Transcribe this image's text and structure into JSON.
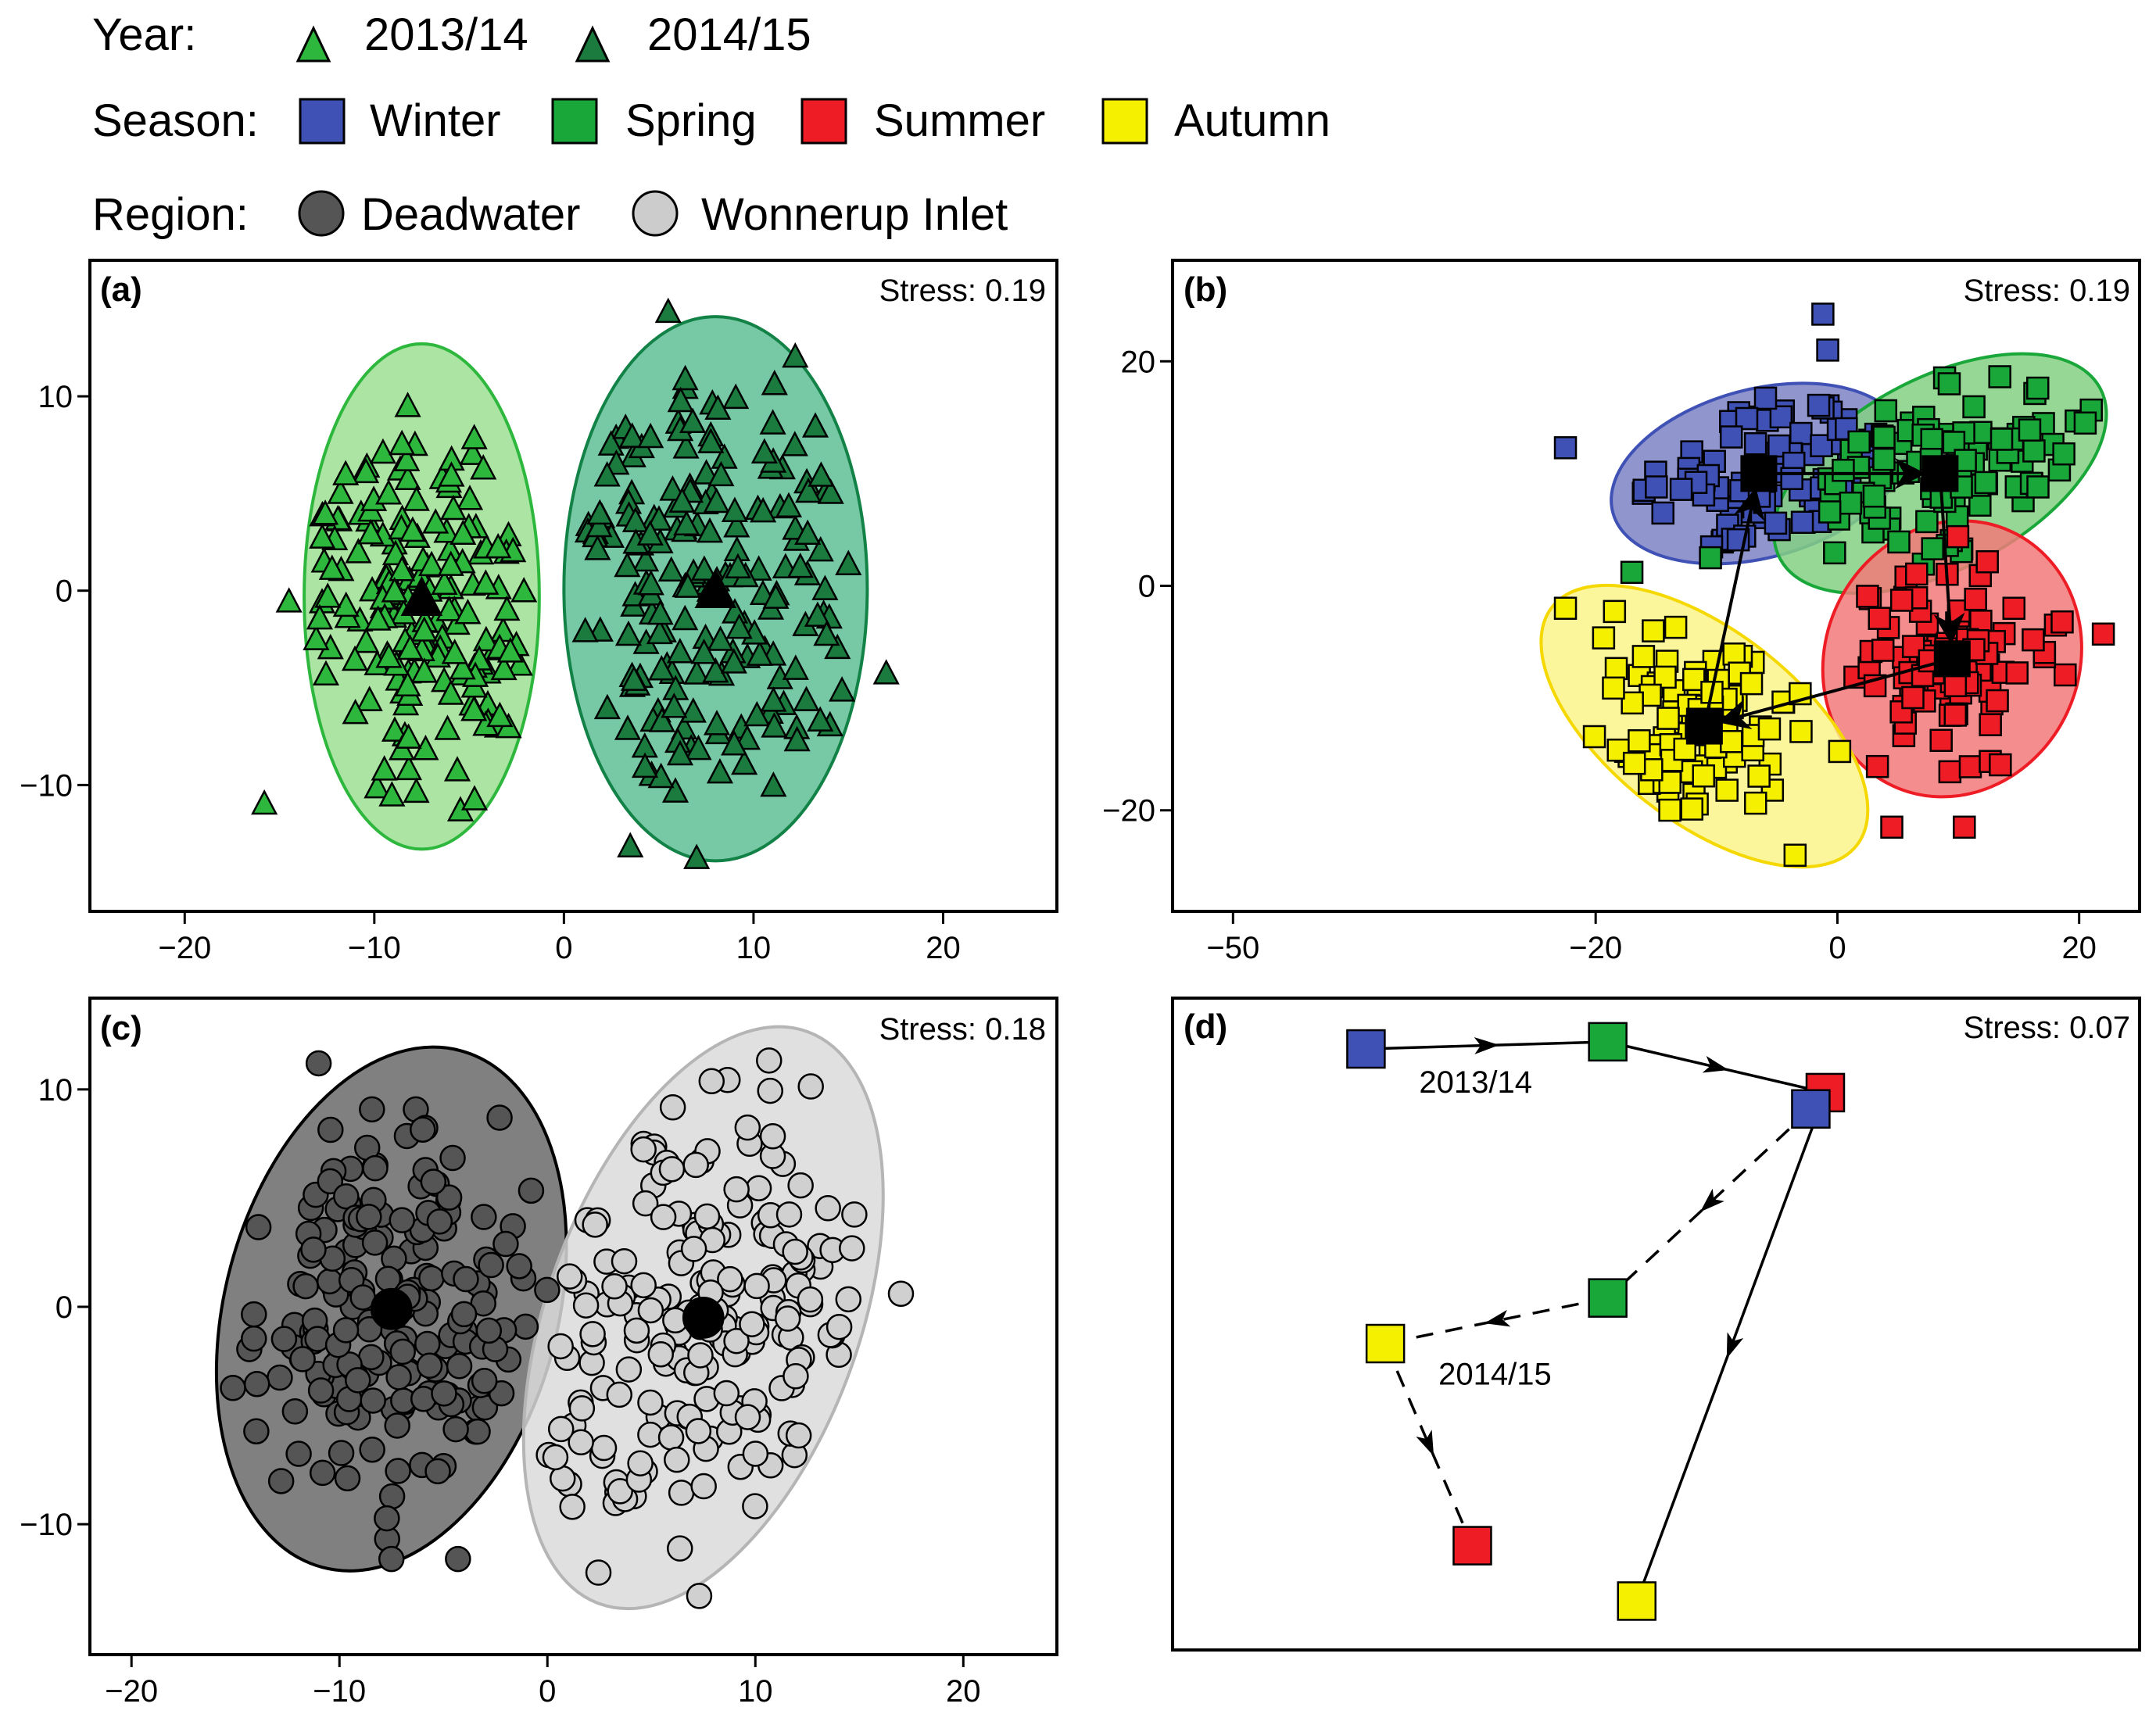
{
  "legend": {
    "year": {
      "title": "Year:",
      "items": [
        {
          "label": "2013/14",
          "color": "#2db83d",
          "symbol": "triangle"
        },
        {
          "label": "2014/15",
          "color": "#1b7a3e",
          "symbol": "triangle"
        }
      ]
    },
    "season": {
      "title": "Season:",
      "items": [
        {
          "label": "Winter",
          "color": "#3f51b5",
          "symbol": "square"
        },
        {
          "label": "Spring",
          "color": "#1aa73a",
          "symbol": "square"
        },
        {
          "label": "Summer",
          "color": "#ee1c24",
          "symbol": "square"
        },
        {
          "label": "Autumn",
          "color": "#f5f000",
          "symbol": "square"
        }
      ]
    },
    "region": {
      "title": "Region:",
      "items": [
        {
          "label": "Deadwater",
          "color": "#555555",
          "symbol": "circle"
        },
        {
          "label": "Wonnerup Inlet",
          "color": "#cccccc",
          "symbol": "circle"
        }
      ]
    }
  },
  "chart_data": [
    {
      "panel": "(a)",
      "type": "scatter",
      "grouping": "Year",
      "stress": "Stress: 0.19",
      "xlim": [
        -25,
        26
      ],
      "ylim": [
        -16.5,
        17
      ],
      "xticks": [
        -20,
        -10,
        0,
        10,
        20
      ],
      "yticks": [
        -10,
        0,
        10
      ],
      "xtick_labels": [
        "−20",
        "−10",
        "0",
        "10",
        "20"
      ],
      "ytick_labels": [
        "−10",
        "0",
        "10"
      ],
      "groups": [
        {
          "name": "2013/14",
          "color": "#2db83d",
          "fill": "#9ddf93",
          "edge": "#2db83d",
          "centroid": [
            -7.5,
            -0.3
          ],
          "ellipse": {
            "rx": 6.2,
            "ry": 13,
            "angle": 0
          },
          "n": 170,
          "spread": [
            3.2,
            5.5
          ],
          "extra_points": [
            [
              -15.8,
              -10.9
            ],
            [
              -14.5,
              -0.5
            ]
          ]
        },
        {
          "name": "2014/15",
          "color": "#1b7a3e",
          "fill": "#5fbf97",
          "edge": "#138247",
          "centroid": [
            8,
            0.1
          ],
          "ellipse": {
            "rx": 8.0,
            "ry": 14,
            "angle": 0
          },
          "n": 190,
          "spread": [
            4.0,
            6.0
          ],
          "extra_points": [
            [
              3.5,
              -13.1
            ],
            [
              7,
              -13.7
            ],
            [
              17,
              -4.2
            ],
            [
              5.5,
              14.4
            ],
            [
              12.2,
              12.1
            ]
          ]
        }
      ]
    },
    {
      "panel": "(b)",
      "type": "scatter",
      "grouping": "Season",
      "stress": "Stress: 0.19",
      "xlim": [
        -55,
        25
      ],
      "ylim": [
        -29,
        29
      ],
      "xticks": [
        -50,
        -20,
        0,
        20
      ],
      "yticks": [
        -20,
        0,
        20
      ],
      "xtick_labels": [
        "−50",
        "−20",
        "0",
        "20"
      ],
      "ytick_labels": [
        "−20",
        "0",
        "20"
      ],
      "groups": [
        {
          "name": "Winter",
          "color": "#3f51b5",
          "fill": "#7d84c4",
          "edge": "#3f51b5",
          "centroid": [
            -6.5,
            10
          ],
          "ellipse": {
            "rx": 12.5,
            "ry": 7.5,
            "angle": -15
          },
          "n": 90,
          "spread": [
            5.5,
            3.2
          ],
          "extra_points": [
            [
              -22.5,
              12.3
            ],
            [
              -1.2,
              24.2
            ],
            [
              -0.8,
              21
            ]
          ]
        },
        {
          "name": "Spring",
          "color": "#1aa73a",
          "fill": "#84d084",
          "edge": "#1aa73a",
          "centroid": [
            8.5,
            10
          ],
          "ellipse": {
            "rx": 15,
            "ry": 8.5,
            "angle": -28
          },
          "n": 95,
          "spread": [
            5.5,
            4
          ],
          "extra_points": [
            [
              -17,
              1.2
            ],
            [
              -10.5,
              2.5
            ],
            [
              20.5,
              14.5
            ]
          ]
        },
        {
          "name": "Summer",
          "color": "#ee1c24",
          "fill": "#f27a7a",
          "edge": "#ee1c24",
          "centroid": [
            9.5,
            -6.5
          ],
          "ellipse": {
            "rx": 10.5,
            "ry": 12.5,
            "angle": 25
          },
          "n": 95,
          "spread": [
            4.5,
            4.5
          ],
          "extra_points": [
            [
              4.5,
              -21.5
            ],
            [
              10.5,
              -21.5
            ],
            [
              22,
              -4.3
            ]
          ]
        },
        {
          "name": "Autumn",
          "color": "#f5f000",
          "fill": "#faf38a",
          "edge": "#f5d800",
          "centroid": [
            -11,
            -12.5
          ],
          "ellipse": {
            "rx": 16,
            "ry": 8.5,
            "angle": 38
          },
          "n": 95,
          "spread": [
            4.5,
            4.5
          ],
          "extra_points": [
            [
              -22.5,
              -2
            ],
            [
              -3.5,
              -24
            ]
          ]
        }
      ],
      "trajectory": [
        {
          "from": "Winter",
          "to": "Spring"
        },
        {
          "from": "Spring",
          "to": "Summer"
        },
        {
          "from": "Summer",
          "to": "Autumn"
        },
        {
          "from": "Autumn",
          "to": "Winter"
        }
      ]
    },
    {
      "panel": "(c)",
      "type": "scatter",
      "grouping": "Region",
      "stress": "Stress: 0.18",
      "xlim": [
        -22,
        24.5
      ],
      "ylim": [
        -16,
        14.2
      ],
      "xticks": [
        -20,
        -10,
        0,
        10,
        20
      ],
      "yticks": [
        -10,
        0,
        10
      ],
      "xtick_labels": [
        "−20",
        "−10",
        "0",
        "10",
        "20"
      ],
      "ytick_labels": [
        "−10",
        "0",
        "10"
      ],
      "groups": [
        {
          "name": "Deadwater",
          "color": "#555555",
          "fill": "#6a6a6a",
          "edge": "#000000",
          "centroid": [
            -7.5,
            -0.1
          ],
          "ellipse": {
            "rx": 8.0,
            "ry": 12.3,
            "angle": 15
          },
          "n": 190,
          "spread": [
            3.6,
            4.8
          ],
          "extra_points": [
            [
              -7.5,
              -11.6
            ],
            [
              -4.3,
              -11.6
            ],
            [
              -11,
              11.2
            ],
            [
              -2.3,
              8.7
            ]
          ]
        },
        {
          "name": "Wonnerup Inlet",
          "color": "#cccccc",
          "fill": "#dadada",
          "edge": "#b5b5b5",
          "centroid": [
            7.5,
            -0.5
          ],
          "ellipse": {
            "rx": 7.5,
            "ry": 14,
            "angle": 20
          },
          "n": 200,
          "spread": [
            3.4,
            5.2
          ],
          "extra_points": [
            [
              17,
              0.6
            ],
            [
              7.3,
              -13.3
            ],
            [
              1.2,
              -9.2
            ]
          ]
        }
      ]
    },
    {
      "panel": "(d)",
      "type": "trajectory",
      "grouping": "Year x Season",
      "stress": "Stress: 0.07",
      "xlim": [
        0,
        10
      ],
      "ylim": [
        0,
        10
      ],
      "series": [
        {
          "name": "2013/14",
          "line_style": "solid",
          "label": "2013/14",
          "points": [
            {
              "season": "Winter",
              "x": 2.0,
              "y": 9.22
            },
            {
              "season": "Spring",
              "x": 4.5,
              "y": 9.33
            },
            {
              "season": "Summer",
              "x": 6.75,
              "y": 8.55
            },
            {
              "season": "Autumn",
              "x": 4.8,
              "y": 0.75
            }
          ]
        },
        {
          "name": "2014/15",
          "line_style": "dashed",
          "label": "2014/15",
          "points": [
            {
              "season": "Winter",
              "x": 6.6,
              "y": 8.3
            },
            {
              "season": "Spring",
              "x": 4.5,
              "y": 5.4
            },
            {
              "season": "Autumn",
              "x": 2.2,
              "y": 4.7
            },
            {
              "season": "Summer",
              "x": 3.1,
              "y": 1.6
            }
          ]
        }
      ]
    }
  ]
}
